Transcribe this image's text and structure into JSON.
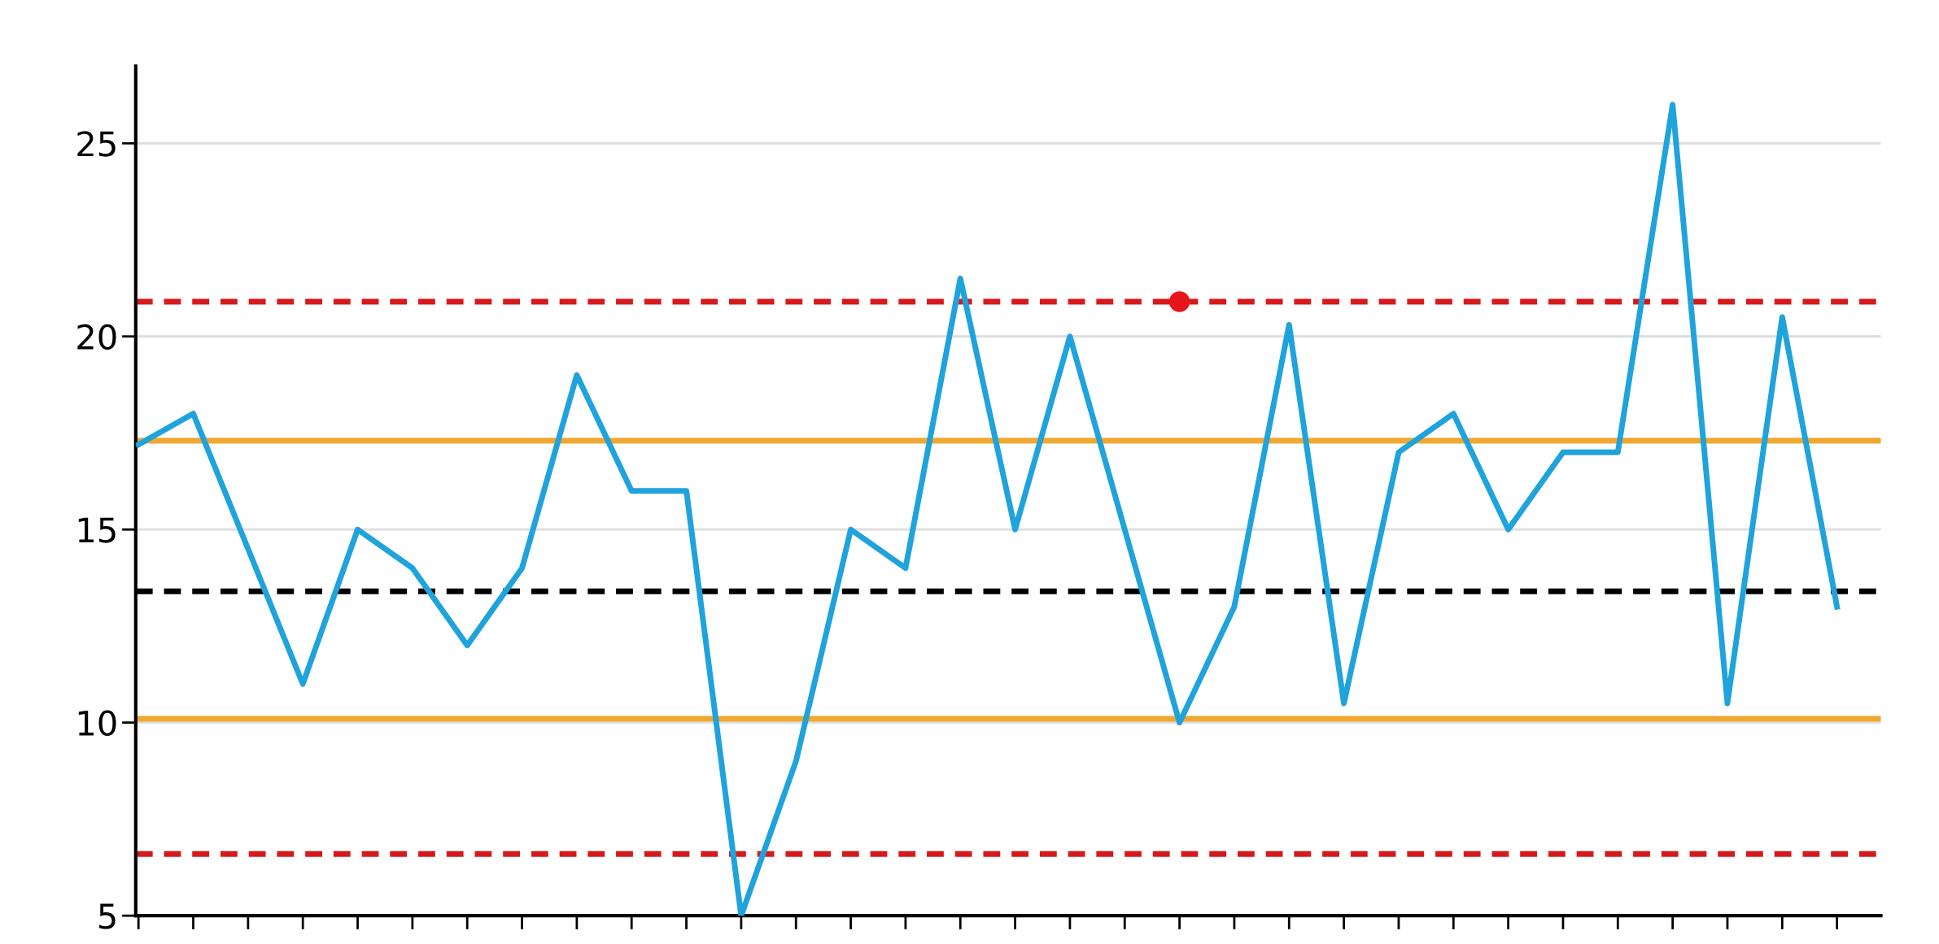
{
  "chart_data": {
    "type": "line",
    "categories": [
      null,
      null,
      null,
      null,
      null,
      null,
      null,
      null,
      null,
      null,
      null,
      null,
      null,
      null,
      null,
      null,
      null,
      null,
      null,
      null,
      null,
      null,
      null,
      null,
      null,
      null,
      null,
      null,
      null,
      null,
      null,
      null
    ],
    "series": [
      {
        "color": "#1fa3dc",
        "values": [
          17.2,
          18,
          14.5,
          11,
          15,
          14,
          12,
          14,
          19,
          16,
          16,
          5,
          9,
          15,
          14,
          21.5,
          15,
          20,
          15,
          10,
          13,
          20.3,
          10.5,
          17,
          18,
          15,
          17,
          17,
          26,
          10.5,
          20.5,
          13
        ]
      },
      {
        "type": "scatter",
        "color": "#e8141c",
        "marker": "circle",
        "values": [
          null,
          null,
          null,
          null,
          null,
          null,
          null,
          null,
          null,
          null,
          null,
          null,
          null,
          null,
          null,
          null,
          null,
          null,
          null,
          20.9,
          null,
          null,
          null,
          null,
          null,
          null,
          null,
          null,
          null,
          null,
          null,
          null
        ]
      }
    ],
    "ref_lines": [
      {
        "axis": "y",
        "value": 20.9,
        "color": "#d7191c",
        "line_style": "dashed"
      },
      {
        "axis": "y",
        "value": 17.3,
        "color": "#f0a830",
        "line_style": "solid"
      },
      {
        "axis": "y",
        "value": 13.4,
        "color": "#000000",
        "line_style": "dashed"
      },
      {
        "axis": "y",
        "value": 10.1,
        "color": "#f0a830",
        "line_style": "solid"
      },
      {
        "axis": "y",
        "value": 6.6,
        "color": "#d7191c",
        "line_style": "dashed"
      }
    ],
    "ylim": [
      5,
      27
    ],
    "yticks": [
      5,
      10,
      15,
      20,
      25
    ],
    "grid": "y",
    "tick_labels": "y",
    "legend": false
  }
}
